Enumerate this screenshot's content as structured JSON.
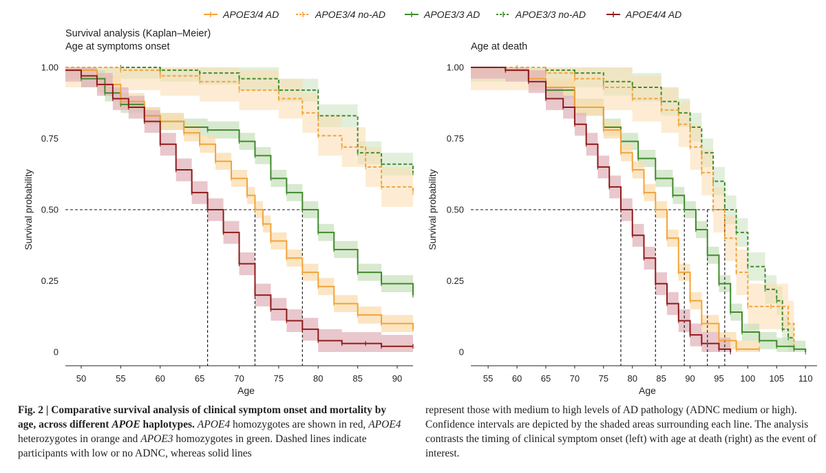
{
  "legend": [
    {
      "label": "APOE3/4  AD",
      "color": "#f2a33a",
      "dashed": false
    },
    {
      "label": "APOE3/4 no-AD",
      "color": "#f2a33a",
      "dashed": true
    },
    {
      "label": "APOE3/3 AD",
      "color": "#3f8a2c",
      "dashed": false
    },
    {
      "label": "APOE3/3 no-AD",
      "color": "#3f8a2c",
      "dashed": true
    },
    {
      "label": "APOE4/4 AD",
      "color": "#8e1b1b",
      "dashed": false
    }
  ],
  "colors": {
    "orange": "#f2a33a",
    "orange_band": "#fbdcae",
    "green": "#3f8a2c",
    "green_band": "#c9e1bd",
    "red": "#8e1b1b",
    "red_band": "#e2b4bb"
  },
  "chart_data": [
    {
      "type": "line",
      "title": "Survival analysis (Kaplan–Meier)",
      "subtitle": "Age at symptoms onset",
      "xlabel": "Age",
      "ylabel": "Survival probability",
      "xlim": [
        48,
        92
      ],
      "ylim": [
        0,
        1
      ],
      "xticks": [
        "50",
        "55",
        "60",
        "65",
        "70",
        "75",
        "80",
        "85",
        "90"
      ],
      "yticks": [
        "0",
        "0.25",
        "0.50",
        "0.75",
        "1.00"
      ],
      "median_line": {
        "y": 0.5,
        "x_values": [
          66,
          72,
          78
        ]
      },
      "series": [
        {
          "name": "APOE3/3 no-AD",
          "color": "green",
          "dashed": true,
          "ci": 0.04,
          "points": [
            [
              48,
              1.0
            ],
            [
              55,
              1.0
            ],
            [
              60,
              0.99
            ],
            [
              65,
              0.98
            ],
            [
              70,
              0.96
            ],
            [
              75,
              0.92
            ],
            [
              80,
              0.83
            ],
            [
              85,
              0.7
            ],
            [
              88,
              0.66
            ],
            [
              92,
              0.63
            ]
          ]
        },
        {
          "name": "APOE3/4 no-AD",
          "color": "orange",
          "dashed": true,
          "ci": 0.07,
          "points": [
            [
              48,
              1.0
            ],
            [
              55,
              0.99
            ],
            [
              60,
              0.97
            ],
            [
              65,
              0.95
            ],
            [
              70,
              0.92
            ],
            [
              75,
              0.89
            ],
            [
              78,
              0.84
            ],
            [
              80,
              0.76
            ],
            [
              83,
              0.72
            ],
            [
              86,
              0.65
            ],
            [
              88,
              0.58
            ],
            [
              92,
              0.56
            ]
          ]
        },
        {
          "name": "APOE3/3 AD",
          "color": "green",
          "dashed": false,
          "ci": 0.03,
          "points": [
            [
              48,
              0.99
            ],
            [
              50,
              0.96
            ],
            [
              53,
              0.91
            ],
            [
              55,
              0.87
            ],
            [
              58,
              0.83
            ],
            [
              60,
              0.81
            ],
            [
              63,
              0.79
            ],
            [
              66,
              0.78
            ],
            [
              70,
              0.74
            ],
            [
              72,
              0.69
            ],
            [
              74,
              0.61
            ],
            [
              76,
              0.56
            ],
            [
              78,
              0.5
            ],
            [
              80,
              0.42
            ],
            [
              82,
              0.36
            ],
            [
              85,
              0.28
            ],
            [
              88,
              0.24
            ],
            [
              92,
              0.2
            ]
          ]
        },
        {
          "name": "APOE3/4  AD",
          "color": "orange",
          "dashed": false,
          "ci": 0.03,
          "points": [
            [
              48,
              0.99
            ],
            [
              52,
              0.94
            ],
            [
              55,
              0.88
            ],
            [
              58,
              0.83
            ],
            [
              60,
              0.81
            ],
            [
              63,
              0.77
            ],
            [
              65,
              0.73
            ],
            [
              67,
              0.67
            ],
            [
              69,
              0.61
            ],
            [
              71,
              0.55
            ],
            [
              72,
              0.5
            ],
            [
              73,
              0.45
            ],
            [
              74,
              0.39
            ],
            [
              76,
              0.33
            ],
            [
              78,
              0.28
            ],
            [
              80,
              0.23
            ],
            [
              82,
              0.17
            ],
            [
              85,
              0.13
            ],
            [
              88,
              0.1
            ],
            [
              92,
              0.08
            ]
          ]
        },
        {
          "name": "APOE4/4 AD",
          "color": "red",
          "dashed": false,
          "ci": 0.04,
          "points": [
            [
              48,
              0.99
            ],
            [
              50,
              0.97
            ],
            [
              52,
              0.94
            ],
            [
              54,
              0.89
            ],
            [
              56,
              0.86
            ],
            [
              58,
              0.81
            ],
            [
              60,
              0.73
            ],
            [
              62,
              0.64
            ],
            [
              64,
              0.56
            ],
            [
              66,
              0.5
            ],
            [
              68,
              0.42
            ],
            [
              70,
              0.31
            ],
            [
              72,
              0.2
            ],
            [
              74,
              0.15
            ],
            [
              76,
              0.11
            ],
            [
              78,
              0.08
            ],
            [
              80,
              0.04
            ],
            [
              83,
              0.03
            ],
            [
              86,
              0.03
            ],
            [
              88,
              0.02
            ],
            [
              92,
              0.02
            ]
          ]
        }
      ]
    },
    {
      "type": "line",
      "subtitle": "Age at death",
      "xlabel": "Age",
      "ylabel": "Survival probability",
      "xlim": [
        52,
        112
      ],
      "ylim": [
        0,
        1
      ],
      "xticks": [
        "55",
        "60",
        "65",
        "70",
        "75",
        "80",
        "85",
        "90",
        "95",
        "100",
        "105",
        "110"
      ],
      "yticks": [
        "0",
        "0.25",
        "0.50",
        "0.75",
        "1.00"
      ],
      "median_line": {
        "y": 0.5,
        "x_values": [
          78,
          84,
          89,
          93,
          96
        ]
      },
      "series": [
        {
          "name": "APOE3/3 no-AD",
          "color": "green",
          "dashed": true,
          "ci": 0.05,
          "points": [
            [
              52,
              1.0
            ],
            [
              60,
              1.0
            ],
            [
              65,
              0.99
            ],
            [
              70,
              0.98
            ],
            [
              75,
              0.95
            ],
            [
              80,
              0.93
            ],
            [
              85,
              0.88
            ],
            [
              88,
              0.84
            ],
            [
              90,
              0.79
            ],
            [
              92,
              0.7
            ],
            [
              94,
              0.6
            ],
            [
              96,
              0.5
            ],
            [
              98,
              0.42
            ],
            [
              100,
              0.3
            ],
            [
              103,
              0.22
            ],
            [
              105,
              0.18
            ],
            [
              106,
              0.08
            ],
            [
              107,
              0.05
            ],
            [
              108,
              0.02
            ]
          ]
        },
        {
          "name": "APOE3/4 no-AD",
          "color": "orange",
          "dashed": true,
          "ci": 0.08,
          "points": [
            [
              52,
              1.0
            ],
            [
              60,
              1.0
            ],
            [
              65,
              0.98
            ],
            [
              70,
              0.96
            ],
            [
              75,
              0.93
            ],
            [
              80,
              0.89
            ],
            [
              85,
              0.85
            ],
            [
              88,
              0.8
            ],
            [
              90,
              0.72
            ],
            [
              92,
              0.63
            ],
            [
              94,
              0.5
            ],
            [
              96,
              0.4
            ],
            [
              98,
              0.28
            ],
            [
              100,
              0.16
            ],
            [
              104,
              0.16
            ],
            [
              107,
              0.1
            ],
            [
              108,
              0.02
            ]
          ]
        },
        {
          "name": "APOE3/3 AD",
          "color": "green",
          "dashed": false,
          "ci": 0.03,
          "points": [
            [
              52,
              1.0
            ],
            [
              58,
              0.99
            ],
            [
              62,
              0.96
            ],
            [
              65,
              0.92
            ],
            [
              70,
              0.86
            ],
            [
              75,
              0.79
            ],
            [
              78,
              0.74
            ],
            [
              81,
              0.68
            ],
            [
              84,
              0.61
            ],
            [
              87,
              0.55
            ],
            [
              89,
              0.5
            ],
            [
              91,
              0.43
            ],
            [
              93,
              0.34
            ],
            [
              95,
              0.24
            ],
            [
              97,
              0.14
            ],
            [
              99,
              0.07
            ],
            [
              102,
              0.04
            ],
            [
              105,
              0.02
            ],
            [
              108,
              0.01
            ],
            [
              110,
              0.0
            ]
          ]
        },
        {
          "name": "APOE3/4  AD",
          "color": "orange",
          "dashed": false,
          "ci": 0.03,
          "points": [
            [
              52,
              1.0
            ],
            [
              58,
              0.99
            ],
            [
              62,
              0.96
            ],
            [
              65,
              0.93
            ],
            [
              70,
              0.86
            ],
            [
              75,
              0.78
            ],
            [
              78,
              0.7
            ],
            [
              80,
              0.64
            ],
            [
              82,
              0.56
            ],
            [
              84,
              0.5
            ],
            [
              86,
              0.4
            ],
            [
              88,
              0.28
            ],
            [
              90,
              0.18
            ],
            [
              92,
              0.1
            ],
            [
              95,
              0.04
            ],
            [
              98,
              0.01
            ],
            [
              102,
              0.01
            ]
          ]
        },
        {
          "name": "APOE4/4 AD",
          "color": "red",
          "dashed": false,
          "ci": 0.04,
          "points": [
            [
              52,
              1.0
            ],
            [
              58,
              0.99
            ],
            [
              62,
              0.95
            ],
            [
              65,
              0.89
            ],
            [
              68,
              0.86
            ],
            [
              70,
              0.8
            ],
            [
              72,
              0.73
            ],
            [
              74,
              0.65
            ],
            [
              76,
              0.58
            ],
            [
              78,
              0.5
            ],
            [
              80,
              0.41
            ],
            [
              82,
              0.33
            ],
            [
              84,
              0.24
            ],
            [
              86,
              0.17
            ],
            [
              88,
              0.11
            ],
            [
              90,
              0.06
            ],
            [
              92,
              0.03
            ],
            [
              95,
              0.01
            ],
            [
              97,
              0.0
            ]
          ]
        }
      ]
    }
  ],
  "caption": {
    "fig_label": "Fig. 2 |",
    "title_part1": " Comparative survival analysis of clinical symptom onset and mortality by age, across different ",
    "title_gene": "APOE",
    "title_part2": " haplotypes.",
    "t1_gene": "APOE4",
    "t1": " homozygotes are shown in red, ",
    "t2_gene": "APOE4",
    "t2": " heterozygotes in orange and ",
    "t3_gene": "APOE3",
    "t3": " homozygotes in green. Dashed lines indicate participants with low or no ADNC, whereas solid lines",
    "right_text": "represent those with medium to high levels of AD pathology (ADNC medium or high). Confidence intervals are depicted by the shaded areas surrounding each line. The analysis contrasts the timing of clinical symptom onset (left) with age at death (right) as the event of interest."
  }
}
